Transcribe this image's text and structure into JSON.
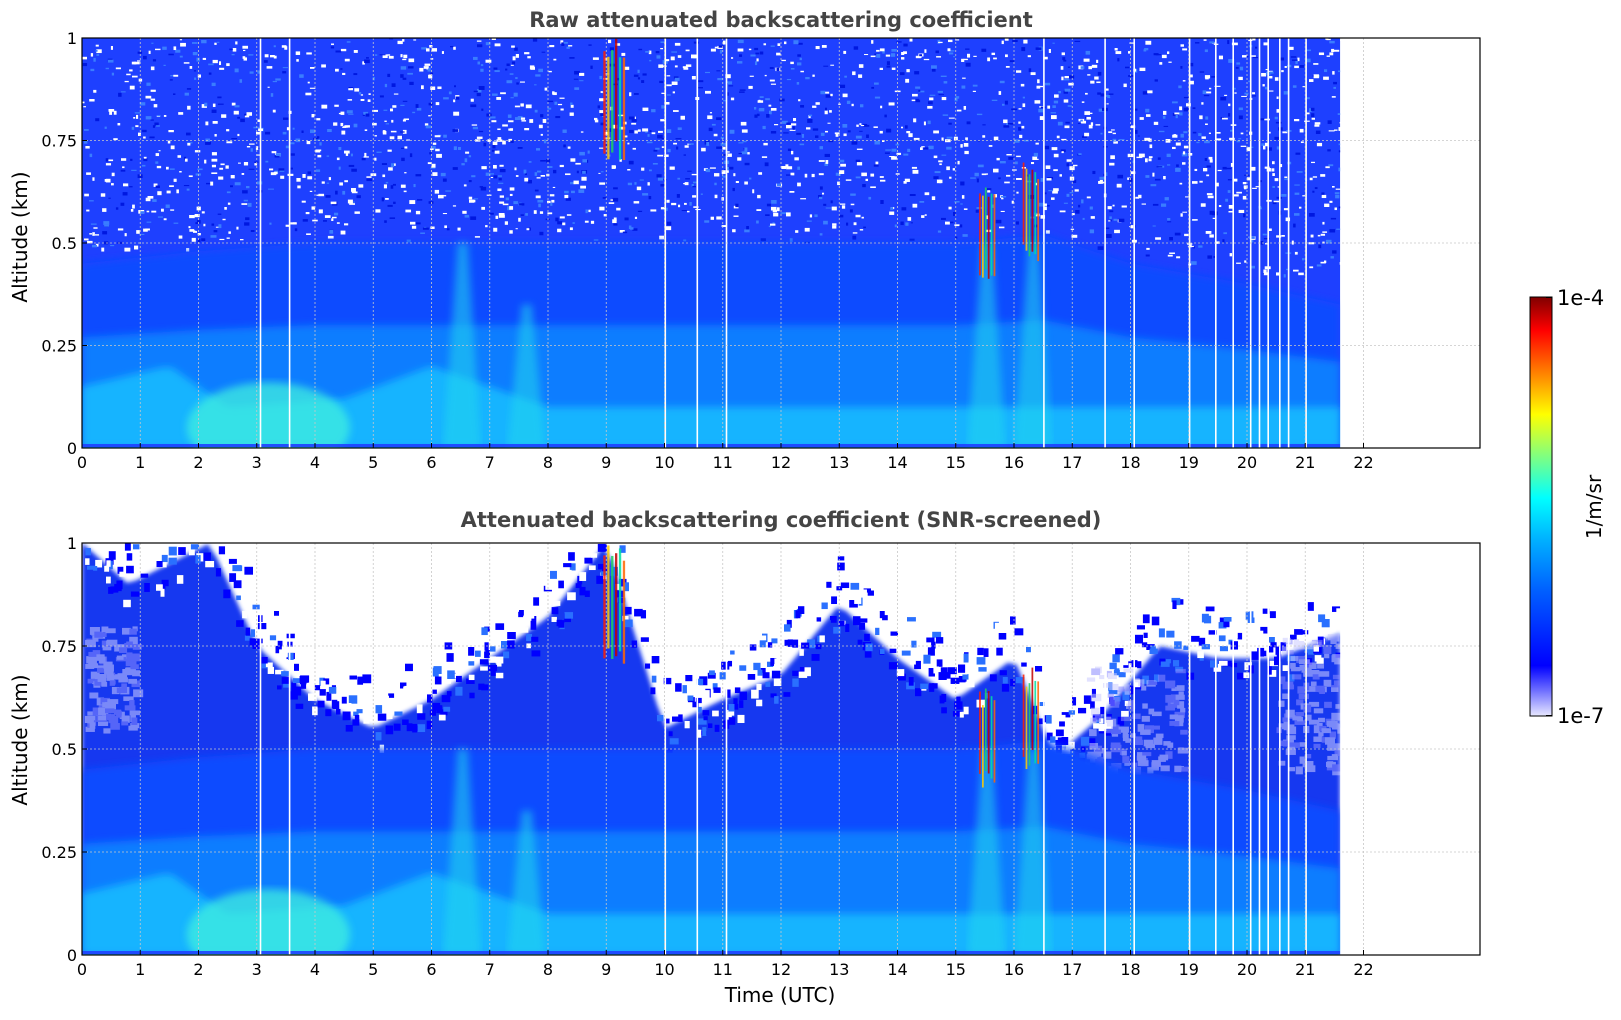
{
  "chart_data": [
    {
      "type": "heatmap",
      "title": "Raw attenuated backscattering coefficient",
      "xlabel": "",
      "ylabel": "Altitude (km)",
      "xlim": [
        0,
        24
      ],
      "ylim": [
        0,
        1
      ],
      "x_ticks": [
        "0",
        "1",
        "2",
        "3",
        "4",
        "5",
        "6",
        "7",
        "8",
        "9",
        "10",
        "11",
        "12",
        "13",
        "14",
        "15",
        "16",
        "17",
        "18",
        "19",
        "20",
        "21",
        "22"
      ],
      "y_ticks": [
        "0",
        "0.25",
        "0.5",
        "0.75",
        "1"
      ],
      "grid": true,
      "data_end_hour": 21.6,
      "screened": false,
      "aerosol_top_km": [
        [
          0,
          0.45
        ],
        [
          2,
          0.48
        ],
        [
          4,
          0.5
        ],
        [
          6,
          0.5
        ],
        [
          8,
          0.5
        ],
        [
          9,
          0.5
        ],
        [
          11,
          0.5
        ],
        [
          13,
          0.5
        ],
        [
          15,
          0.5
        ],
        [
          16.5,
          0.52
        ],
        [
          18,
          0.45
        ],
        [
          20,
          0.4
        ],
        [
          21.6,
          0.35
        ]
      ],
      "dense_layer_top_km": [
        [
          0,
          0.15
        ],
        [
          1.5,
          0.2
        ],
        [
          2.5,
          0.1
        ],
        [
          4.5,
          0.12
        ],
        [
          6,
          0.2
        ],
        [
          7,
          0.15
        ],
        [
          8,
          0.1
        ],
        [
          15,
          0.1
        ],
        [
          16.5,
          0.1
        ],
        [
          18,
          0.1
        ],
        [
          21.6,
          0.1
        ]
      ],
      "clouds": [
        {
          "hour_start": 8.95,
          "hour_end": 9.35,
          "alt_low_km": 0.75,
          "alt_high_km": 1.0
        },
        {
          "hour_start": 15.4,
          "hour_end": 15.7,
          "alt_low_km": 0.45,
          "alt_high_km": 0.65
        },
        {
          "hour_start": 16.15,
          "hour_end": 16.45,
          "alt_low_km": 0.5,
          "alt_high_km": 0.7
        }
      ],
      "gaps_hours": [
        3.05,
        3.55,
        10.0,
        10.55,
        11.05,
        16.5,
        17.55,
        18.05,
        19.0,
        19.45,
        19.75,
        20.05,
        20.2,
        20.35,
        20.55,
        20.7,
        21.0
      ]
    },
    {
      "type": "heatmap",
      "title": "Attenuated backscattering coefficient (SNR-screened)",
      "xlabel": "Time (UTC)",
      "ylabel": "Altitude (km)",
      "xlim": [
        0,
        24
      ],
      "ylim": [
        0,
        1
      ],
      "x_ticks": [
        "0",
        "1",
        "2",
        "3",
        "4",
        "5",
        "6",
        "7",
        "8",
        "9",
        "10",
        "11",
        "12",
        "13",
        "14",
        "15",
        "16",
        "17",
        "18",
        "19",
        "20",
        "21",
        "22"
      ],
      "y_ticks": [
        "0",
        "0.25",
        "0.5",
        "0.75",
        "1"
      ],
      "grid": true,
      "data_end_hour": 21.6,
      "screened": true,
      "signal_top_km": [
        [
          0,
          1.0
        ],
        [
          0.8,
          0.9
        ],
        [
          1.5,
          0.95
        ],
        [
          2.2,
          1.0
        ],
        [
          3,
          0.75
        ],
        [
          4,
          0.62
        ],
        [
          5,
          0.55
        ],
        [
          6,
          0.62
        ],
        [
          7,
          0.72
        ],
        [
          8,
          0.82
        ],
        [
          9,
          1.0
        ],
        [
          10,
          0.55
        ],
        [
          11,
          0.62
        ],
        [
          12,
          0.68
        ],
        [
          13,
          0.85
        ],
        [
          14,
          0.72
        ],
        [
          15,
          0.62
        ],
        [
          16,
          0.72
        ],
        [
          16.7,
          0.48
        ],
        [
          17.5,
          0.58
        ],
        [
          18.5,
          0.75
        ],
        [
          19.5,
          0.72
        ],
        [
          20.5,
          0.72
        ],
        [
          21.6,
          0.78
        ]
      ],
      "aerosol_top_km": [
        [
          0,
          0.45
        ],
        [
          2,
          0.48
        ],
        [
          4,
          0.5
        ],
        [
          6,
          0.5
        ],
        [
          8,
          0.5
        ],
        [
          9,
          0.5
        ],
        [
          11,
          0.5
        ],
        [
          13,
          0.5
        ],
        [
          15,
          0.5
        ],
        [
          16.5,
          0.52
        ],
        [
          18,
          0.45
        ],
        [
          20,
          0.4
        ],
        [
          21.6,
          0.35
        ]
      ],
      "dense_layer_top_km": [
        [
          0,
          0.15
        ],
        [
          1.5,
          0.2
        ],
        [
          2.5,
          0.1
        ],
        [
          4.5,
          0.12
        ],
        [
          6,
          0.2
        ],
        [
          7,
          0.15
        ],
        [
          8,
          0.1
        ],
        [
          15,
          0.1
        ],
        [
          16.5,
          0.1
        ],
        [
          18,
          0.1
        ],
        [
          21.6,
          0.1
        ]
      ],
      "clouds": [
        {
          "hour_start": 8.95,
          "hour_end": 9.35,
          "alt_low_km": 0.75,
          "alt_high_km": 1.0
        },
        {
          "hour_start": 15.4,
          "hour_end": 15.7,
          "alt_low_km": 0.45,
          "alt_high_km": 0.65
        },
        {
          "hour_start": 16.15,
          "hour_end": 16.45,
          "alt_low_km": 0.5,
          "alt_high_km": 0.7
        }
      ],
      "gaps_hours": [
        3.05,
        3.55,
        10.0,
        10.55,
        11.05,
        16.5,
        17.55,
        18.05,
        19.0,
        19.45,
        19.75,
        20.05,
        20.2,
        20.35,
        20.55,
        20.7,
        21.0
      ]
    }
  ],
  "colorbar": {
    "label": "1/m/sr",
    "min_label": "1e-7",
    "max_label": "1e-4",
    "scale": "log",
    "colormap": [
      "#e8e8ff",
      "#0000ff",
      "#0080ff",
      "#00ffff",
      "#80ff80",
      "#ffff00",
      "#ff8000",
      "#ff0000",
      "#800000"
    ]
  }
}
